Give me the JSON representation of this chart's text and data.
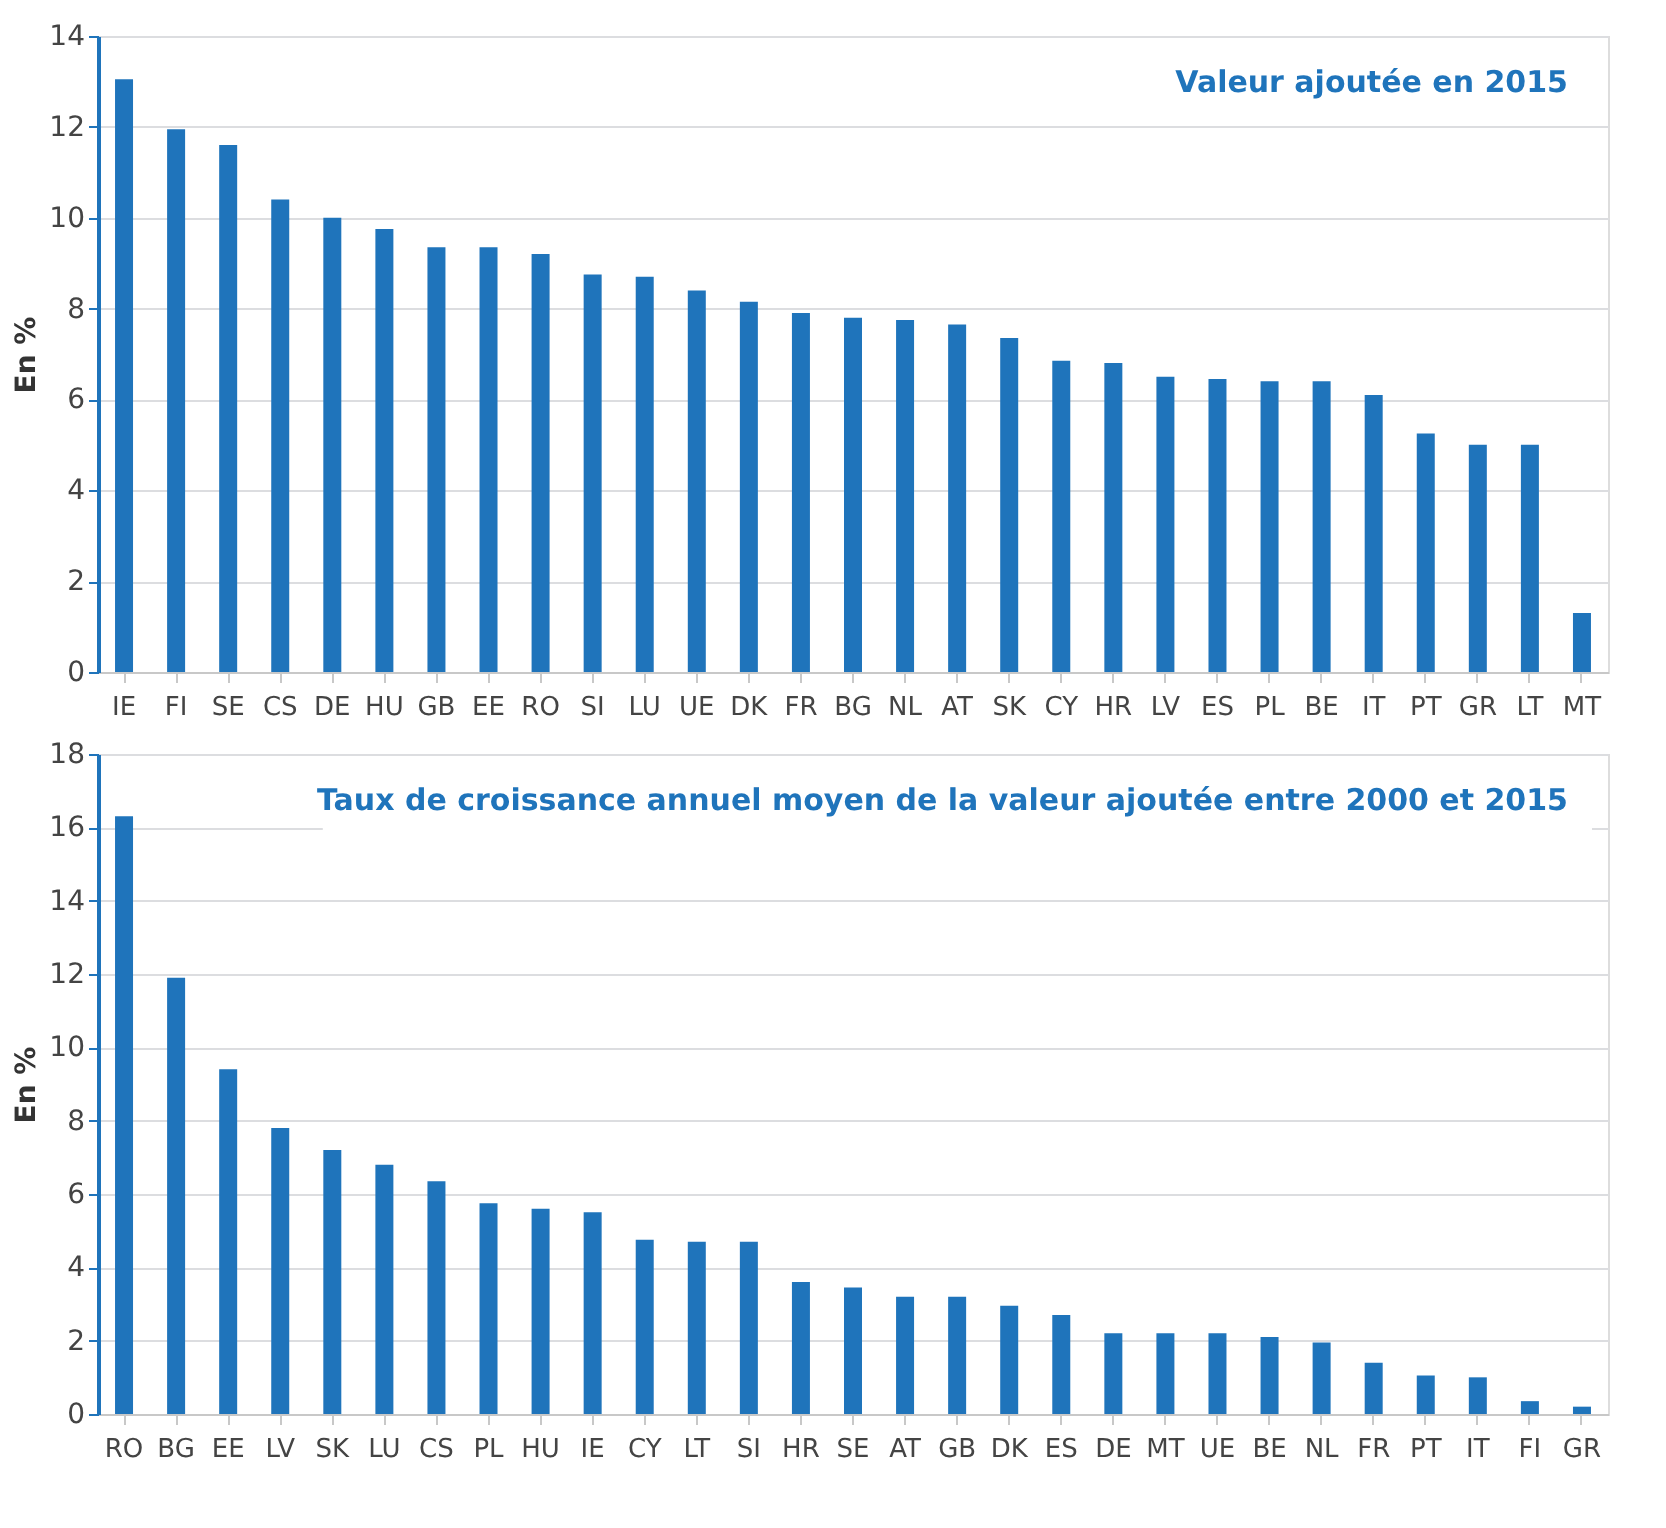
{
  "chart_data": [
    {
      "type": "bar",
      "title": "Valeur ajoutée en 2015",
      "ylabel": "En %",
      "color": "#1f74bb",
      "grid": "y",
      "ylim": [
        0,
        14
      ],
      "yticks": [
        0,
        2,
        4,
        6,
        8,
        10,
        12,
        14
      ],
      "categories": [
        "IE",
        "FI",
        "SE",
        "CS",
        "DE",
        "HU",
        "GB",
        "EE",
        "RO",
        "SI",
        "LU",
        "UE",
        "DK",
        "FR",
        "BG",
        "NL",
        "AT",
        "SK",
        "CY",
        "HR",
        "LV",
        "ES",
        "PL",
        "BE",
        "IT",
        "PT",
        "GR",
        "LT",
        "MT"
      ],
      "values": [
        13.05,
        11.95,
        11.6,
        10.4,
        10.0,
        9.75,
        9.35,
        9.35,
        9.2,
        8.75,
        8.7,
        8.4,
        8.15,
        7.9,
        7.8,
        7.75,
        7.65,
        7.35,
        6.85,
        6.8,
        6.5,
        6.45,
        6.4,
        6.4,
        6.1,
        5.25,
        5.0,
        5.0,
        1.3
      ]
    },
    {
      "type": "bar",
      "title": "Taux de croissance annuel moyen de la valeur ajoutée entre 2000 et 2015",
      "ylabel": "En %",
      "color": "#1f74bb",
      "grid": "y",
      "ylim": [
        0,
        18
      ],
      "yticks": [
        0,
        2,
        4,
        6,
        8,
        10,
        12,
        14,
        16,
        18
      ],
      "categories": [
        "RO",
        "BG",
        "EE",
        "LV",
        "SK",
        "LU",
        "CS",
        "PL",
        "HU",
        "IE",
        "CY",
        "LT",
        "SI",
        "HR",
        "SE",
        "AT",
        "GB",
        "DK",
        "ES",
        "DE",
        "MT",
        "UE",
        "BE",
        "NL",
        "FR",
        "PT",
        "IT",
        "FI",
        "GR"
      ],
      "values": [
        16.3,
        11.9,
        9.4,
        7.8,
        7.2,
        6.8,
        6.35,
        5.75,
        5.6,
        5.5,
        4.75,
        4.7,
        4.7,
        3.6,
        3.45,
        3.2,
        3.2,
        2.95,
        2.7,
        2.2,
        2.2,
        2.2,
        2.1,
        1.95,
        1.4,
        1.05,
        1.0,
        0.35,
        0.2
      ]
    }
  ]
}
